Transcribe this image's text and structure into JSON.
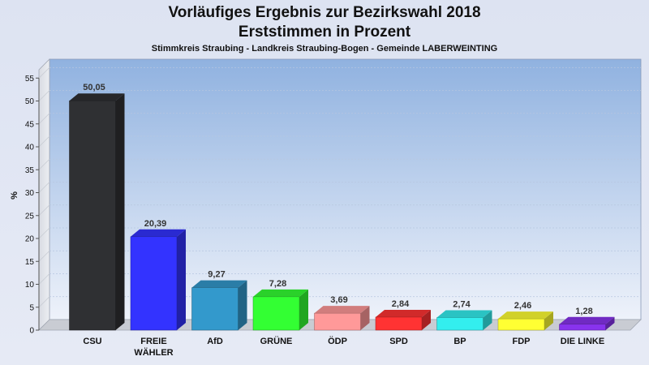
{
  "chart_data": {
    "type": "bar",
    "title": "Vorläufiges Ergebnis zur Bezirkswahl 2018",
    "subtitle": "Erststimmen in Prozent",
    "caption": "Stimmkreis Straubing - Landkreis Straubing-Bogen - Gemeinde LABERWEINTING",
    "ylabel": "%",
    "ylim": [
      0,
      55
    ],
    "yticks": [
      "0",
      "5",
      "10",
      "15",
      "20",
      "25",
      "30",
      "35",
      "40",
      "45",
      "50",
      "55"
    ],
    "grid": true,
    "categories": [
      [
        "CSU"
      ],
      [
        "FREIE",
        "WÄHLER"
      ],
      [
        "AfD"
      ],
      [
        "GRÜNE"
      ],
      [
        "ÖDP"
      ],
      [
        "SPD"
      ],
      [
        "BP"
      ],
      [
        "FDP"
      ],
      [
        "DIE LINKE"
      ]
    ],
    "values": [
      50.05,
      20.39,
      9.27,
      7.28,
      3.69,
      2.84,
      2.74,
      2.46,
      1.28
    ],
    "value_labels": [
      "50,05",
      "20,39",
      "9,27",
      "7,28",
      "3,69",
      "2,84",
      "2,74",
      "2,46",
      "1,28"
    ],
    "colors": [
      "#2f3033",
      "#3333ff",
      "#3399cc",
      "#33ff33",
      "#ff9999",
      "#ff3333",
      "#33eeee",
      "#ffff33",
      "#8833ee"
    ]
  }
}
